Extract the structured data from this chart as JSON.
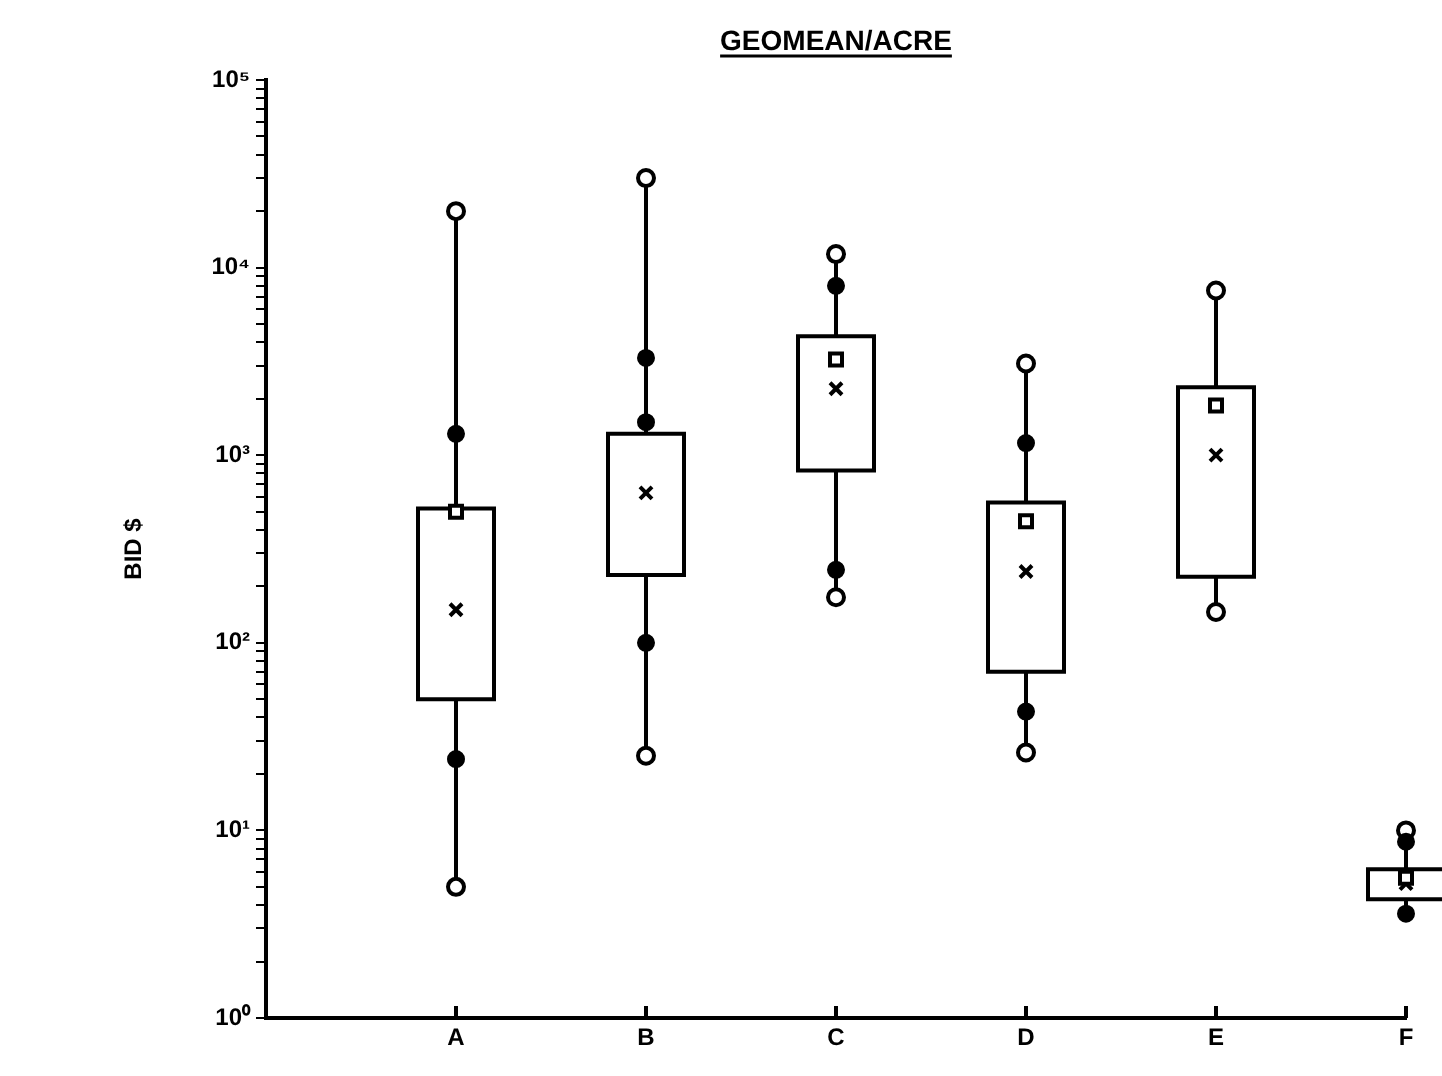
{
  "chart_data": {
    "type": "box",
    "title": "GEOMEAN/ACRE",
    "ylabel": "BID $",
    "categories": [
      "A",
      "B",
      "C",
      "D",
      "E",
      "F"
    ],
    "boxes": [
      {
        "low": 5,
        "q1": 50,
        "median": 150,
        "q3": 520,
        "high": 20000,
        "mean": 500
      },
      {
        "low": 25,
        "q1": 230,
        "median": 630,
        "q3": 1300,
        "high": 30000
      },
      {
        "low": 175,
        "q1": 830,
        "median": 2260,
        "q3": 4300,
        "high": 11800,
        "mean": 3240
      },
      {
        "low": 26,
        "q1": 70,
        "median": 240,
        "q3": 560,
        "high": 3080,
        "mean": 445
      },
      {
        "low": 146,
        "q1": 225,
        "median": 1000,
        "q3": 2300,
        "high": 7550,
        "mean": 1840
      },
      {
        "low": 3.4,
        "q1": 4.3,
        "median": 5.2,
        "q3": 6.2,
        "high": 10,
        "mean": 5.6
      }
    ],
    "series": [
      {
        "type": "scatter",
        "color": "#000000",
        "marker": "circle",
        "x": [
          "A",
          "A",
          "B",
          "B",
          "B",
          "C",
          "C",
          "D",
          "D",
          "F",
          "F"
        ],
        "values": [
          1300,
          24,
          3300,
          1500,
          100,
          8000,
          245,
          1160,
          43,
          8.7,
          3.6
        ]
      },
      {
        "type": "scatter",
        "color": "#000000",
        "marker": "circle",
        "x": [
          "A",
          "A",
          "B",
          "B",
          "C",
          "C",
          "D",
          "D",
          "E",
          "E",
          "F",
          "F"
        ],
        "values": [
          5,
          20000,
          25,
          30000,
          175,
          11800,
          26,
          3080,
          146,
          7550,
          null,
          10
        ]
      }
    ],
    "log": "y",
    "ylim": [
      1,
      100000
    ],
    "yticks": [
      {
        "value": 1,
        "label": "10⁰"
      },
      {
        "value": 2,
        "label": null
      },
      {
        "value": 3,
        "label": null
      },
      {
        "value": 4,
        "label": null
      },
      {
        "value": 5,
        "label": null
      },
      {
        "value": 6,
        "label": null
      },
      {
        "value": 7,
        "label": null
      },
      {
        "value": 8,
        "label": null
      },
      {
        "value": 9,
        "label": null
      },
      {
        "value": 10,
        "label": "10¹"
      },
      {
        "value": 20,
        "label": null
      },
      {
        "value": 30,
        "label": null
      },
      {
        "value": 40,
        "label": null
      },
      {
        "value": 50,
        "label": null
      },
      {
        "value": 60,
        "label": null
      },
      {
        "value": 70,
        "label": null
      },
      {
        "value": 80,
        "label": null
      },
      {
        "value": 90,
        "label": null
      },
      {
        "value": 100,
        "label": "10²"
      },
      {
        "value": 200,
        "label": null
      },
      {
        "value": 300,
        "label": null
      },
      {
        "value": 400,
        "label": null
      },
      {
        "value": 500,
        "label": null
      },
      {
        "value": 600,
        "label": null
      },
      {
        "value": 700,
        "label": null
      },
      {
        "value": 800,
        "label": null
      },
      {
        "value": 900,
        "label": null
      },
      {
        "value": 1000,
        "label": "10³"
      },
      {
        "value": 2000,
        "label": null
      },
      {
        "value": 3000,
        "label": null
      },
      {
        "value": 4000,
        "label": null
      },
      {
        "value": 5000,
        "label": null
      },
      {
        "value": 6000,
        "label": null
      },
      {
        "value": 7000,
        "label": null
      },
      {
        "value": 8000,
        "label": null
      },
      {
        "value": 9000,
        "label": null
      },
      {
        "value": 10000,
        "label": "10⁴"
      },
      {
        "value": 20000,
        "label": null
      },
      {
        "value": 30000,
        "label": null
      },
      {
        "value": 40000,
        "label": null
      },
      {
        "value": 50000,
        "label": null
      },
      {
        "value": 60000,
        "label": null
      },
      {
        "value": 70000,
        "label": null
      },
      {
        "value": 80000,
        "label": null
      },
      {
        "value": 90000,
        "label": null
      },
      {
        "value": 100000,
        "label": "10⁵"
      }
    ],
    "grid": false,
    "legend": false
  }
}
